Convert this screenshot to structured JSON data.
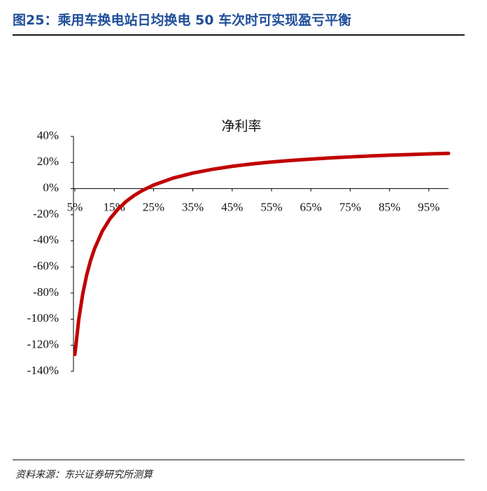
{
  "header": {
    "title": "图25：乘用车换电站日均换电 50 车次时可实现盈亏平衡"
  },
  "chart_data": {
    "type": "line",
    "title": "净利率",
    "x": [
      5,
      6,
      7,
      8,
      9,
      10,
      12,
      14,
      16,
      18,
      20,
      22,
      25,
      30,
      35,
      40,
      45,
      50,
      55,
      60,
      65,
      70,
      75,
      80,
      85,
      90,
      95,
      100
    ],
    "values": [
      -127,
      -100,
      -80.7,
      -66.2,
      -55,
      -46,
      -32.4,
      -22.8,
      -15.6,
      -9.9,
      -5.4,
      -1.7,
      2.7,
      8.1,
      11.9,
      14.8,
      17.1,
      18.9,
      20.4,
      21.6,
      22.6,
      23.5,
      24.3,
      25,
      25.6,
      26.1,
      26.6,
      27
    ],
    "color": "#c00000",
    "xlim": [
      5,
      100
    ],
    "xticks": [
      {
        "value": 5,
        "label": "5%"
      },
      {
        "value": 15,
        "label": "15%"
      },
      {
        "value": 25,
        "label": "25%"
      },
      {
        "value": 35,
        "label": "35%"
      },
      {
        "value": 45,
        "label": "45%"
      },
      {
        "value": 55,
        "label": "55%"
      },
      {
        "value": 65,
        "label": "65%"
      },
      {
        "value": 75,
        "label": "75%"
      },
      {
        "value": 85,
        "label": "85%"
      },
      {
        "value": 95,
        "label": "95%"
      }
    ],
    "ylim": [
      -140,
      40
    ],
    "yticks": [
      {
        "value": 40,
        "label": "40%"
      },
      {
        "value": 20,
        "label": "20%"
      },
      {
        "value": 0,
        "label": "0%"
      },
      {
        "value": -20,
        "label": "-20%"
      },
      {
        "value": -40,
        "label": "-40%"
      },
      {
        "value": -60,
        "label": "-60%"
      },
      {
        "value": -80,
        "label": "-80%"
      },
      {
        "value": -100,
        "label": "-100%"
      },
      {
        "value": -120,
        "label": "-120%"
      },
      {
        "value": -140,
        "label": "-140%"
      }
    ]
  },
  "footer": {
    "source": "资料来源：东兴证券研究所测算"
  }
}
